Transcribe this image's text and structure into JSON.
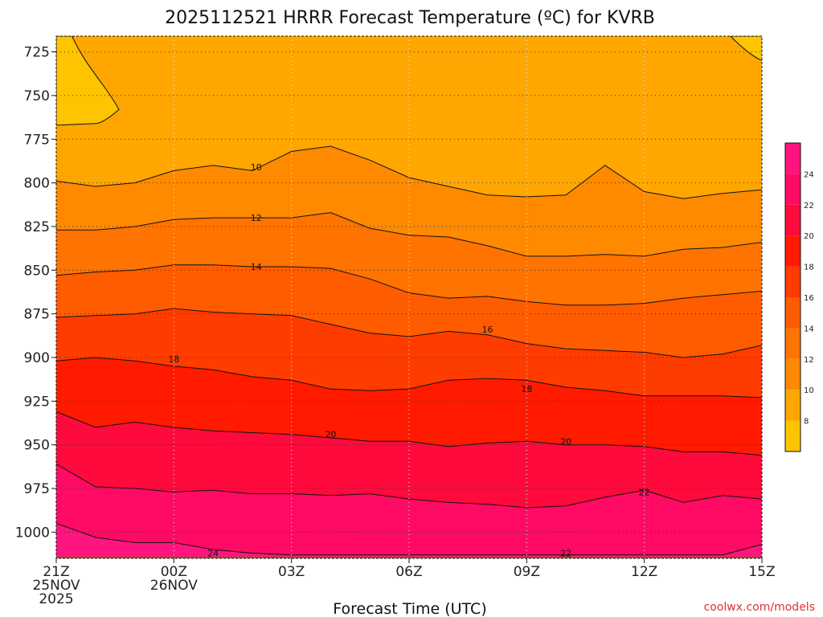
{
  "chart_data": {
    "type": "heatmap",
    "subtype": "filled-contour time-height cross section",
    "title": "2025112521 HRRR Forecast Temperature (ºC) for KVRB",
    "xlabel": "Forecast Time (UTC)",
    "ylabel": "",
    "credit": "coolwx.com/models",
    "x_ticks": [
      {
        "hours": 0,
        "lines": [
          "21Z",
          "25NOV",
          "2025"
        ]
      },
      {
        "hours": 3,
        "lines": [
          "00Z",
          "26NOV"
        ]
      },
      {
        "hours": 6,
        "lines": [
          "03Z"
        ]
      },
      {
        "hours": 9,
        "lines": [
          "06Z"
        ]
      },
      {
        "hours": 12,
        "lines": [
          "09Z"
        ]
      },
      {
        "hours": 15,
        "lines": [
          "12Z"
        ]
      },
      {
        "hours": 18,
        "lines": [
          "15Z"
        ]
      }
    ],
    "x_range_hours": [
      0,
      18
    ],
    "y_axis": "pressure (hPa), inverted",
    "y_range": [
      1015,
      716
    ],
    "y_ticks": [
      725,
      750,
      775,
      800,
      825,
      850,
      875,
      900,
      925,
      950,
      975,
      1000
    ],
    "surface_pressure": 1014,
    "colorbar": {
      "levels": [
        6,
        8,
        10,
        12,
        14,
        16,
        18,
        20,
        22,
        24,
        26
      ],
      "tick_labels": [
        "8",
        "10",
        "12",
        "14",
        "16",
        "18",
        "20",
        "22",
        "24"
      ],
      "colors": [
        "#ffc400",
        "#ffa600",
        "#ff8a00",
        "#ff7300",
        "#ff5c00",
        "#ff3c00",
        "#ff1a00",
        "#ff0a3c",
        "#ff0a64",
        "#ff1480"
      ]
    },
    "isotherms": [
      {
        "value": 10,
        "hours": [
          0,
          1,
          2,
          3,
          4,
          5,
          6,
          7,
          8,
          9,
          10,
          11,
          12,
          13,
          14,
          15,
          16,
          17,
          18
        ],
        "pressure": [
          799,
          802,
          800,
          793,
          790,
          793,
          782,
          779,
          787,
          797,
          802,
          807,
          808,
          807,
          790,
          805,
          809,
          806,
          804
        ]
      },
      {
        "value": 12,
        "hours": [
          0,
          1,
          2,
          3,
          4,
          5,
          6,
          7,
          8,
          9,
          10,
          11,
          12,
          13,
          14,
          15,
          16,
          17,
          18
        ],
        "pressure": [
          827,
          827,
          825,
          821,
          820,
          820,
          820,
          817,
          826,
          830,
          831,
          836,
          842,
          842,
          841,
          842,
          838,
          837,
          834
        ]
      },
      {
        "value": 14,
        "hours": [
          0,
          1,
          2,
          3,
          4,
          5,
          6,
          7,
          8,
          9,
          10,
          11,
          12,
          13,
          14,
          15,
          16,
          17,
          18
        ],
        "pressure": [
          853,
          851,
          850,
          847,
          847,
          848,
          848,
          849,
          855,
          863,
          866,
          865,
          868,
          870,
          870,
          869,
          866,
          864,
          862
        ]
      },
      {
        "value": 16,
        "hours": [
          0,
          1,
          2,
          3,
          4,
          5,
          6,
          7,
          8,
          9,
          10,
          11,
          12,
          13,
          14,
          15,
          16,
          17,
          18
        ],
        "pressure": [
          877,
          876,
          875,
          872,
          874,
          875,
          876,
          881,
          886,
          888,
          885,
          887,
          892,
          895,
          896,
          897,
          900,
          898,
          893
        ]
      },
      {
        "value": 18,
        "hours": [
          0,
          1,
          2,
          3,
          4,
          5,
          6,
          7,
          8,
          9,
          10,
          11,
          12,
          13,
          14,
          15,
          16,
          17,
          18
        ],
        "pressure": [
          902,
          900,
          902,
          905,
          907,
          911,
          913,
          918,
          919,
          918,
          913,
          912,
          913,
          917,
          919,
          922,
          922,
          922,
          923
        ]
      },
      {
        "value": 20,
        "hours": [
          0,
          1,
          2,
          3,
          4,
          5,
          6,
          7,
          8,
          9,
          10,
          11,
          12,
          13,
          14,
          15,
          16,
          17,
          18
        ],
        "pressure": [
          931,
          940,
          937,
          940,
          942,
          943,
          944,
          946,
          948,
          948,
          951,
          949,
          948,
          950,
          950,
          951,
          954,
          954,
          956
        ]
      },
      {
        "value": 22,
        "hours": [
          0,
          1,
          2,
          3,
          4,
          5,
          6,
          7,
          8,
          9,
          10,
          11,
          12,
          13,
          14,
          15,
          16,
          17,
          18
        ],
        "pressure": [
          961,
          974,
          975,
          977,
          976,
          978,
          978,
          979,
          978,
          981,
          983,
          984,
          986,
          985,
          980,
          976,
          983,
          979,
          981
        ]
      },
      {
        "value": 24,
        "hours": [
          0,
          1,
          2,
          3,
          4,
          5,
          6,
          7,
          8,
          9,
          10,
          11,
          12,
          13,
          14,
          15,
          16,
          17,
          18
        ],
        "pressure": [
          995,
          1003,
          1006,
          1006,
          1010,
          1012,
          1013,
          1013,
          1013,
          1013,
          1013,
          1013,
          1013,
          1013,
          1013,
          1013,
          1013,
          1013,
          1007
        ]
      }
    ],
    "contour_labels": [
      {
        "text": "10",
        "hours": 5.1,
        "pressure": 791
      },
      {
        "text": "12",
        "hours": 5.1,
        "pressure": 820
      },
      {
        "text": "14",
        "hours": 5.1,
        "pressure": 848
      },
      {
        "text": "16",
        "hours": 11.0,
        "pressure": 884
      },
      {
        "text": "18",
        "hours": 3.0,
        "pressure": 901
      },
      {
        "text": "18",
        "hours": 12.0,
        "pressure": 918
      },
      {
        "text": "20",
        "hours": 7.0,
        "pressure": 944
      },
      {
        "text": "20",
        "hours": 13.0,
        "pressure": 948
      },
      {
        "text": "22",
        "hours": 15.0,
        "pressure": 977
      },
      {
        "text": "22",
        "hours": 13.0,
        "pressure": 1012
      },
      {
        "text": "24",
        "hours": 4.0,
        "pressure": 1012
      }
    ]
  }
}
